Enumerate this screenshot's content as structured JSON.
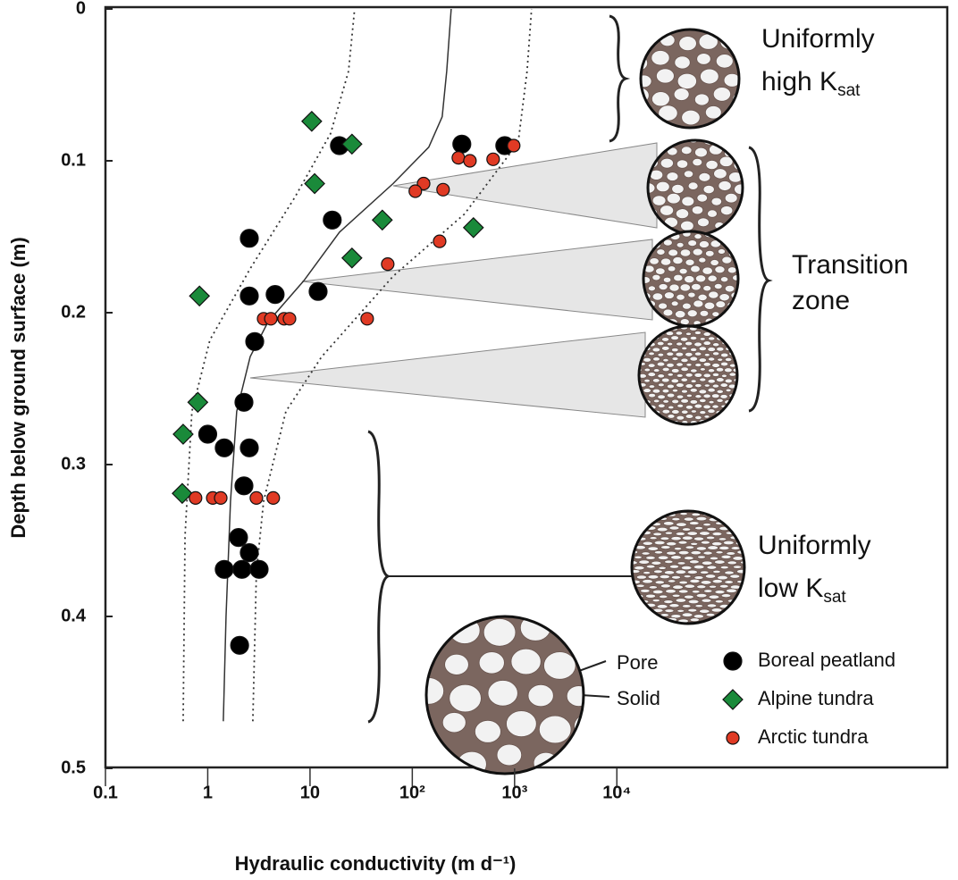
{
  "chart_data": {
    "type": "scatter",
    "xlabel": "Hydraulic conductivity (m d⁻¹)",
    "ylabel": "Depth below ground surface (m)",
    "xscale": "log",
    "xlim": [
      0.1,
      17000000
    ],
    "xticks": [
      0.1,
      1,
      10,
      {
        "value": 100,
        "label": "10²"
      },
      {
        "value": 1000,
        "label": "10³"
      },
      {
        "value": 10000,
        "label": "10⁴"
      }
    ],
    "ylim": [
      0,
      0.5
    ],
    "y_inverted": true,
    "yticks": [
      0,
      0.1,
      0.2,
      0.3,
      0.4,
      0.5
    ],
    "legend": "lower right",
    "series": [
      {
        "name": "Boreal peatland",
        "color": "#000000",
        "marker": "circle",
        "x": [
          19.4,
          305,
          802,
          16.5,
          2.55,
          2.55,
          4.56,
          12.0,
          2.88,
          2.26,
          1.0,
          1.45,
          2.55,
          2.26,
          2.0,
          2.55,
          1.45,
          2.16,
          3.18,
          2.05
        ],
        "values": [
          0.09,
          0.089,
          0.09,
          0.139,
          0.151,
          0.189,
          0.188,
          0.186,
          0.219,
          0.259,
          0.28,
          0.289,
          0.289,
          0.314,
          0.348,
          0.358,
          0.369,
          0.369,
          0.369,
          0.419
        ]
      },
      {
        "name": "Alpine tundra",
        "color": "#1a8a3a",
        "marker": "diamond",
        "x": [
          10.4,
          25.7,
          11.1,
          50.9,
          396,
          25.7,
          0.83,
          0.8,
          0.575,
          0.563
        ],
        "values": [
          0.074,
          0.089,
          0.115,
          0.139,
          0.144,
          0.164,
          0.189,
          0.259,
          0.28,
          0.319
        ]
      },
      {
        "name": "Arctic tundra",
        "color": "#e03a24",
        "marker": "circle-small",
        "x": [
          980,
          282,
          366,
          617,
          129,
          107,
          200,
          185,
          57.5,
          3.52,
          4.14,
          5.58,
          6.3,
          36.2,
          0.76,
          1.12,
          1.34,
          2.99,
          4.37
        ],
        "values": [
          0.09,
          0.098,
          0.1,
          0.099,
          0.115,
          0.12,
          0.119,
          0.153,
          0.168,
          0.204,
          0.204,
          0.204,
          0.204,
          0.204,
          0.322,
          0.322,
          0.322,
          0.322,
          0.322
        ]
      }
    ],
    "curves": [
      {
        "style": "solid",
        "x": [
          1.42,
          1.51,
          1.67,
          1.92,
          2.6,
          3.89,
          8.69,
          19.4,
          64.9,
          145,
          196,
          217,
          240
        ],
        "values": [
          0.469,
          0.4,
          0.324,
          0.265,
          0.229,
          0.206,
          0.179,
          0.147,
          0.115,
          0.091,
          0.071,
          0.041,
          0
        ]
      },
      {
        "style": "dotted",
        "x": [
          0.575,
          0.6,
          0.7,
          1.05,
          2.6,
          7.11,
          15.9,
          23.8,
          27.3
        ],
        "values": [
          0.469,
          0.347,
          0.265,
          0.218,
          0.171,
          0.124,
          0.082,
          0.041,
          0
        ]
      },
      {
        "style": "dotted",
        "x": [
          2.76,
          2.99,
          3.52,
          5.81,
          13.0,
          64.9,
          324,
          1084,
          1325,
          1466
        ],
        "values": [
          0.469,
          0.371,
          0.324,
          0.265,
          0.229,
          0.176,
          0.135,
          0.088,
          0.041,
          0
        ]
      }
    ],
    "annotations": [
      {
        "lines": [
          "Uniformly",
          "high K"
        ],
        "sub": "sat"
      },
      {
        "lines": [
          "Transition",
          "zone"
        ]
      },
      {
        "lines": [
          "Uniformly",
          "low K"
        ],
        "sub": "sat"
      }
    ],
    "pore_labels": [
      "Pore",
      "Solid"
    ]
  }
}
